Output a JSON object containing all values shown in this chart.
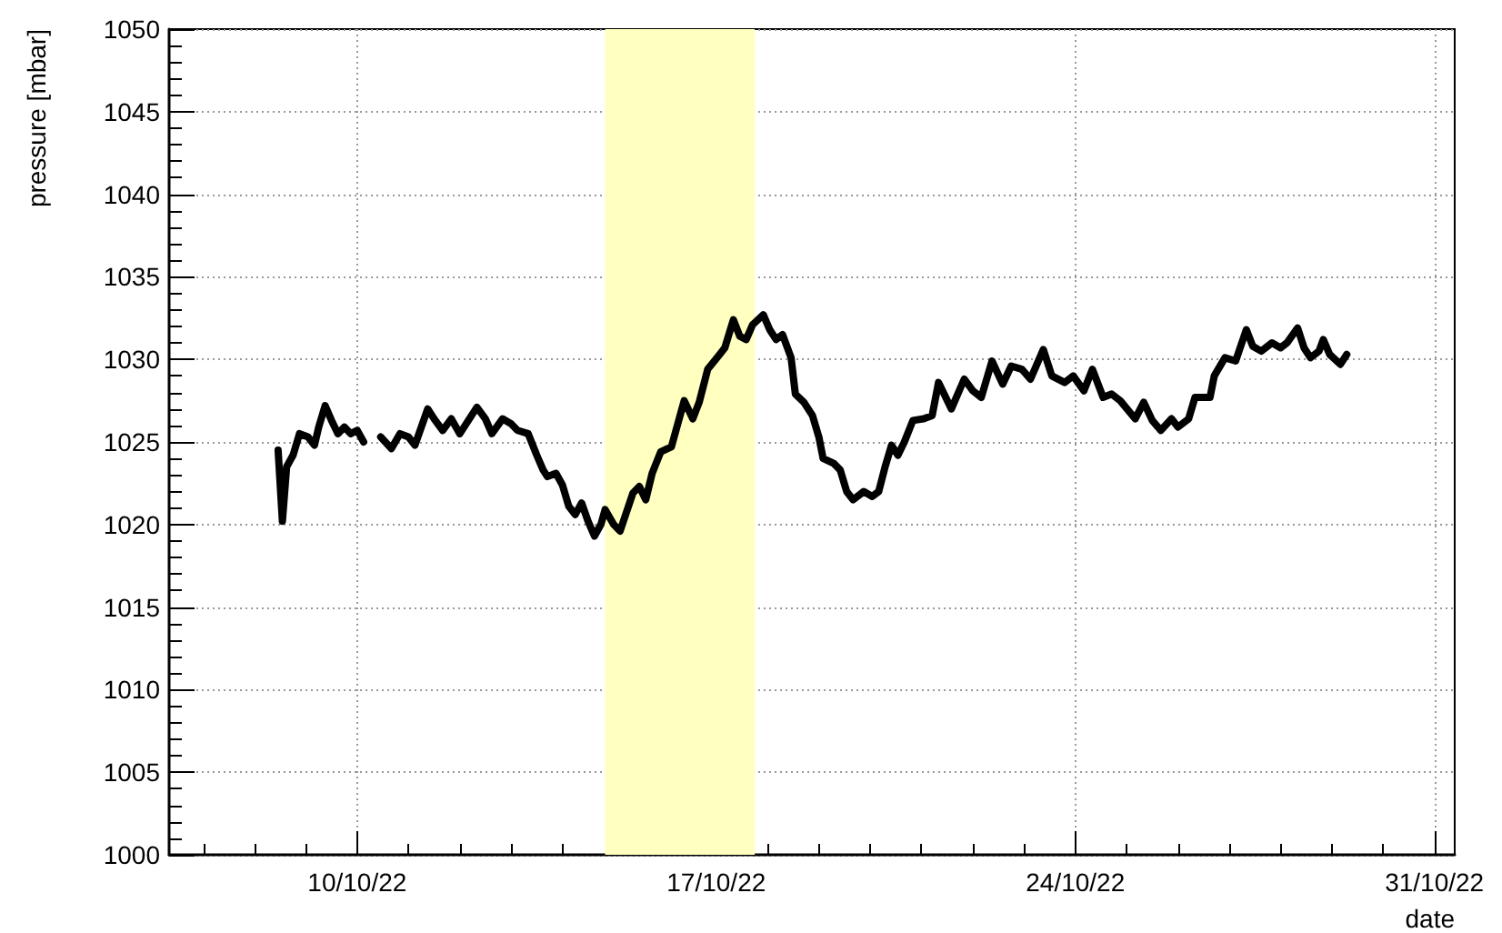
{
  "chart_data": {
    "type": "line",
    "xlabel": "date",
    "ylabel": "pressure [mbar]",
    "xlim": [
      "--10-06T08:00",
      "--10-31T09:30"
    ],
    "ylim": [
      1000,
      1050
    ],
    "xticks": [
      {
        "value": "--10-07",
        "label": null
      },
      {
        "value": "--10-08",
        "label": null
      },
      {
        "value": "--10-09",
        "label": null
      },
      {
        "value": "--10-10",
        "label": "10/10/22"
      },
      {
        "value": "--10-11",
        "label": null
      },
      {
        "value": "--10-12",
        "label": null
      },
      {
        "value": "--10-13",
        "label": null
      },
      {
        "value": "--10-14",
        "label": null
      },
      {
        "value": "--10-15",
        "label": null
      },
      {
        "value": "--10-16",
        "label": null
      },
      {
        "value": "--10-17",
        "label": "17/10/22"
      },
      {
        "value": "--10-18",
        "label": null
      },
      {
        "value": "--10-19",
        "label": null
      },
      {
        "value": "--10-20",
        "label": null
      },
      {
        "value": "--10-21",
        "label": null
      },
      {
        "value": "--10-22",
        "label": null
      },
      {
        "value": "--10-23",
        "label": null
      },
      {
        "value": "--10-24",
        "label": "24/10/22"
      },
      {
        "value": "--10-25",
        "label": null
      },
      {
        "value": "--10-26",
        "label": null
      },
      {
        "value": "--10-27",
        "label": null
      },
      {
        "value": "--10-28",
        "label": null
      },
      {
        "value": "--10-29",
        "label": null
      },
      {
        "value": "--10-30",
        "label": null
      },
      {
        "value": "--10-31",
        "label": "31/10/22"
      }
    ],
    "yticks": [
      1000,
      1005,
      1010,
      1015,
      1020,
      1025,
      1030,
      1035,
      1040,
      1045,
      1050
    ],
    "grid": true,
    "bands": [
      {
        "axis": "x",
        "from": "--10-14T20:00",
        "to": "--10-17T18:00",
        "color": "#ffffbf"
      }
    ],
    "x": [
      "--10-08T11:00",
      "--10-08T13:00",
      "--10-08T15:00",
      "--10-08T18:00",
      "--10-08T21:00",
      "--10-09T01:00",
      "--10-09T04:00",
      "--10-09T06:00",
      "--10-09T09:00",
      "--10-09T12:00",
      "--10-09T15:00",
      "--10-09T18:00",
      "--10-09T21:00",
      "--10-10T00:00",
      "--10-10T03:00",
      "--10-10T07:00",
      "--10-10T11:00",
      "--10-10T16:00",
      "--10-10T20:00",
      "--10-11T00:00",
      "--10-11T03:00",
      "--10-11T06:00",
      "--10-11T09:00",
      "--10-11T12:00",
      "--10-11T16:00",
      "--10-11T20:00",
      "--10-12T00:00",
      "--10-12T04:00",
      "--10-12T08:00",
      "--10-12T12:00",
      "--10-12T15:00",
      "--10-12T20:00",
      "--10-13T00:00",
      "--10-13T03:00",
      "--10-13T08:00",
      "--10-13T12:00",
      "--10-13T15:00",
      "--10-13T17:00",
      "--10-13T21:00",
      "--10-14T00:00",
      "--10-14T03:00",
      "--10-14T06:00",
      "--10-14T09:00",
      "--10-14T12:00",
      "--10-14T15:00",
      "--10-14T18:00",
      "--10-14T20:00",
      "--10-15T00:00",
      "--10-15T03:00",
      "--10-15T09:00",
      "--10-15T12:00",
      "--10-15T15:00",
      "--10-15T18:00",
      "--10-15T22:00",
      "--10-16T03:00",
      "--10-16T06:00",
      "--10-16T09:00",
      "--10-16T13:00",
      "--10-16T16:00",
      "--10-16T20:00",
      "--10-17T01:00",
      "--10-17T04:00",
      "--10-17T08:00",
      "--10-17T11:00",
      "--10-17T14:00",
      "--10-17T17:00",
      "--10-17T22:00",
      "--10-18T01:00",
      "--10-18T04:00",
      "--10-18T07:00",
      "--10-18T11:00",
      "--10-18T13:00",
      "--10-18T17:00",
      "--10-18T21:00",
      "--10-19T00:00",
      "--10-19T02:00",
      "--10-19T07:00",
      "--10-19T10:00",
      "--10-19T13:00",
      "--10-19T16:00",
      "--10-19T21:00",
      "--10-20T01:00",
      "--10-20T04:00",
      "--10-20T07:00",
      "--10-20T10:00",
      "--10-20T13:00",
      "--10-20T16:00",
      "--10-20T20:00",
      "--10-21T01:00",
      "--10-21T05:00",
      "--10-21T08:00",
      "--10-21T14:00",
      "--10-21T20:00",
      "--10-22T00:00",
      "--10-22T04:00",
      "--10-22T09:00",
      "--10-22T14:00",
      "--10-22T18:00",
      "--10-22T23:00",
      "--10-23T03:00",
      "--10-23T09:00",
      "--10-23T13:00",
      "--10-23T19:00",
      "--10-23T23:00",
      "--10-24T04:00",
      "--10-24T08:00",
      "--10-24T13:00",
      "--10-24T17:00",
      "--10-24T21:00",
      "--10-25T04:00",
      "--10-25T08:00",
      "--10-25T12:00",
      "--10-25T16:00",
      "--10-25T21:00",
      "--10-26T00:00",
      "--10-26T05:00",
      "--10-26T08:00",
      "--10-26T15:00",
      "--10-26T17:00",
      "--10-26T22:00",
      "--10-27T03:00",
      "--10-27T08:00",
      "--10-27T11:00",
      "--10-27T15:00",
      "--10-27T20:00",
      "--10-28T00:00",
      "--10-28T03:00",
      "--10-28T08:00",
      "--10-28T11:00",
      "--10-28T14:00",
      "--10-28T18:00",
      "--10-28T20:00",
      "--10-28T23:00",
      "--10-29T04:00",
      "--10-29T07:00"
    ],
    "series": [
      {
        "color": "#000000",
        "values": [
          1024.5,
          1020.2,
          1023.5,
          1024.2,
          1025.5,
          1025.3,
          1024.8,
          1025.9,
          1027.2,
          1026.3,
          1025.5,
          1025.9,
          1025.5,
          1025.7,
          1025.0,
          null,
          1025.3,
          1024.6,
          1025.5,
          1025.3,
          1024.8,
          1025.9,
          1027.0,
          1026.4,
          1025.7,
          1026.4,
          1025.5,
          1026.3,
          1027.1,
          1026.4,
          1025.5,
          1026.4,
          1026.1,
          1025.7,
          1025.5,
          1024.2,
          1023.3,
          1022.9,
          1023.1,
          1022.4,
          1021.1,
          1020.6,
          1021.3,
          1020.2,
          1019.3,
          1020.0,
          1020.9,
          1020.0,
          1019.6,
          1021.9,
          1022.3,
          1021.5,
          1023.1,
          1024.4,
          1024.7,
          1026.1,
          1027.5,
          1026.4,
          1027.4,
          1029.4,
          1030.2,
          1030.7,
          1032.4,
          1031.4,
          1031.2,
          1032.1,
          1032.7,
          1031.8,
          1031.2,
          1031.5,
          1030.1,
          1027.9,
          1027.4,
          1026.6,
          1025.3,
          1024.0,
          1023.7,
          1023.3,
          1022.0,
          1021.5,
          1022.0,
          1021.7,
          1022.0,
          1023.5,
          1024.8,
          1024.2,
          1025.0,
          1026.3,
          1026.4,
          1026.6,
          1028.6,
          1027.0,
          1028.8,
          1028.1,
          1027.7,
          1029.9,
          1028.5,
          1029.6,
          1029.4,
          1028.8,
          1030.6,
          1029.0,
          1028.6,
          1029.0,
          1028.1,
          1029.4,
          1027.7,
          1027.9,
          1027.5,
          1026.4,
          1027.4,
          1026.3,
          1025.7,
          1026.4,
          1025.9,
          1026.4,
          1027.7,
          1027.7,
          1029.0,
          1030.1,
          1029.9,
          1031.8,
          1030.8,
          1030.5,
          1031.0,
          1030.7,
          1031.0,
          1031.9,
          1030.7,
          1030.1,
          1030.5,
          1031.2,
          1030.3,
          1029.7,
          1030.3
        ]
      }
    ]
  }
}
